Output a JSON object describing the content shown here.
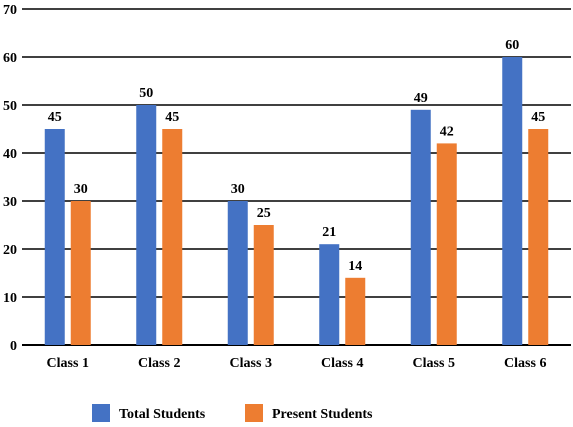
{
  "chart_data": {
    "type": "bar",
    "categories": [
      "Class 1",
      "Class 2",
      "Class 3",
      "Class 4",
      "Class 5",
      "Class 6"
    ],
    "series": [
      {
        "name": "Total Students",
        "values": [
          45,
          50,
          30,
          21,
          49,
          60
        ],
        "color": "#4472C4"
      },
      {
        "name": "Present Students",
        "values": [
          30,
          45,
          25,
          14,
          42,
          45
        ],
        "color": "#ED7D31"
      }
    ],
    "data_labels": {
      "Total Students": [
        "45",
        "50",
        "30",
        "21",
        "49",
        "60"
      ],
      "Present Students": [
        "30",
        "45",
        "25",
        "14",
        "42",
        "45"
      ]
    },
    "title": "",
    "xlabel": "",
    "ylabel": "",
    "ylim": [
      0,
      70
    ],
    "yticks": [
      "0",
      "10",
      "20",
      "30",
      "40",
      "50",
      "60",
      "70"
    ],
    "grid": true,
    "legend_position": "bottom"
  }
}
